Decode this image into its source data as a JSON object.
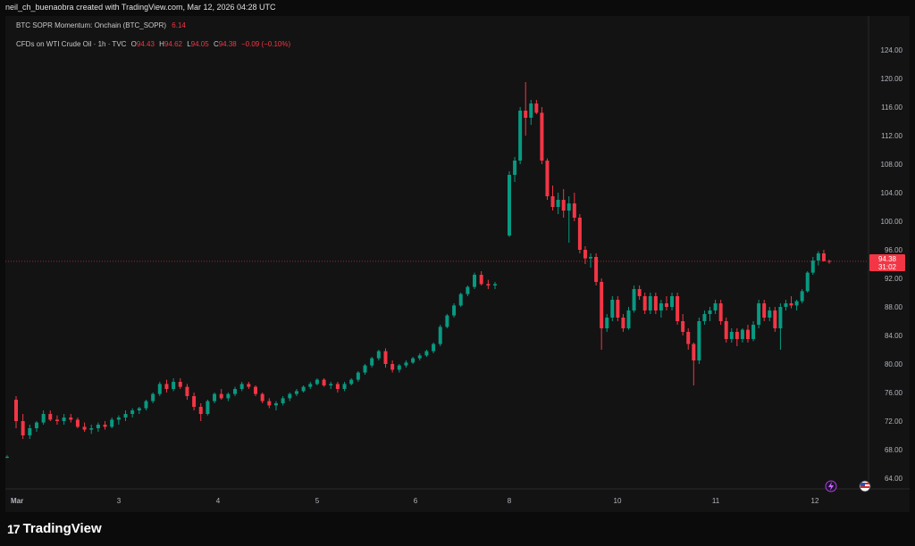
{
  "header": {
    "credit": "neil_ch_buenaobra created with TradingView.com, Mar 12, 2026 04:28 UTC"
  },
  "legend": {
    "indicator_name": "BTC SOPR Momentum: Onchain (BTC_SOPR)",
    "indicator_value": "6.14",
    "symbol": "CFDs on WTI Crude Oil · 1h · TVC",
    "o_label": "O",
    "o_val": "94.43",
    "h_label": "H",
    "h_val": "94.62",
    "l_label": "L",
    "l_val": "94.05",
    "c_label": "C",
    "c_val": "94.38",
    "change": "−0.09 (−0.10%)"
  },
  "price_tag": {
    "price": "94.38",
    "countdown": "31:02"
  },
  "footer": {
    "logo_text": "TradingView",
    "logo_mark": "17"
  },
  "colors": {
    "up": "#089981",
    "down": "#f23645",
    "bg": "#131313",
    "grid": "#1e1e1e",
    "text": "#b2b5be"
  },
  "icons": {
    "event1": "lightning-icon",
    "event2": "us-flag-icon"
  },
  "chart_data": {
    "type": "candlestick",
    "title": "CFDs on WTI Crude Oil · 1h · TVC",
    "y_ticks": [
      "124.00",
      "120.00",
      "116.00",
      "112.00",
      "108.00",
      "104.00",
      "100.00",
      "96.00",
      "92.00",
      "88.00",
      "84.00",
      "80.00",
      "76.00",
      "72.00",
      "68.00",
      "64.00"
    ],
    "ylim": [
      64,
      124
    ],
    "x_ticks": [
      "Mar",
      "3",
      "4",
      "5",
      "6",
      "8",
      "10",
      "11",
      "12"
    ],
    "last_price": 94.38,
    "last_price_color": "#f23645",
    "grid": false,
    "candles": [
      [
        67,
        67.2,
        66.8,
        67
      ],
      [
        75,
        75.5,
        71,
        72
      ],
      [
        72,
        73,
        69.5,
        70
      ],
      [
        70,
        71.5,
        69.5,
        71
      ],
      [
        71,
        72,
        70.5,
        71.8
      ],
      [
        71.8,
        73.5,
        71.5,
        73
      ],
      [
        73,
        73.5,
        72,
        72.2
      ],
      [
        72.2,
        72.8,
        71.5,
        72
      ],
      [
        72,
        73,
        71.5,
        72.5
      ],
      [
        72.5,
        73,
        71.8,
        72.2
      ],
      [
        72.2,
        72.5,
        71,
        71.2
      ],
      [
        71.2,
        71.8,
        70.5,
        70.8
      ],
      [
        70.8,
        71.5,
        70.2,
        71
      ],
      [
        71,
        71.8,
        70.5,
        71.5
      ],
      [
        71.5,
        72,
        70.8,
        71.2
      ],
      [
        71.2,
        72.5,
        71,
        72.2
      ],
      [
        72.2,
        72.8,
        71.5,
        72.5
      ],
      [
        72.5,
        73.5,
        72,
        73
      ],
      [
        73,
        73.8,
        72.5,
        73.5
      ],
      [
        73.5,
        74,
        73,
        73.8
      ],
      [
        73.8,
        75,
        73.5,
        74.8
      ],
      [
        74.8,
        76,
        74.5,
        75.8
      ],
      [
        75.8,
        77.5,
        75.5,
        77.2
      ],
      [
        77.2,
        77.8,
        76,
        76.5
      ],
      [
        76.5,
        78,
        76.2,
        77.5
      ],
      [
        77.5,
        78,
        76.5,
        76.8
      ],
      [
        76.8,
        77.2,
        75,
        75.5
      ],
      [
        75.5,
        76,
        73.5,
        74
      ],
      [
        74,
        74.5,
        72,
        73
      ],
      [
        73,
        75,
        72.8,
        74.8
      ],
      [
        74.8,
        76,
        74.5,
        75.8
      ],
      [
        75.8,
        76.5,
        75,
        75.2
      ],
      [
        75.2,
        76,
        74.8,
        75.8
      ],
      [
        75.8,
        76.8,
        75.5,
        76.5
      ],
      [
        76.5,
        77.5,
        76.2,
        77.2
      ],
      [
        77.2,
        77.5,
        76.5,
        76.8
      ],
      [
        76.8,
        77,
        75.5,
        75.8
      ],
      [
        75.8,
        76,
        74.5,
        74.8
      ],
      [
        74.8,
        75.2,
        73.8,
        74.2
      ],
      [
        74.2,
        74.8,
        73.5,
        74.5
      ],
      [
        74.5,
        75.5,
        74.2,
        75.2
      ],
      [
        75.2,
        76,
        74.8,
        75.8
      ],
      [
        75.8,
        76.5,
        75.5,
        76.2
      ],
      [
        76.2,
        77,
        76,
        76.8
      ],
      [
        76.8,
        77.5,
        76.5,
        77.2
      ],
      [
        77.2,
        78,
        77,
        77.8
      ],
      [
        77.8,
        78,
        76.8,
        77
      ],
      [
        77,
        77.5,
        76.5,
        77.2
      ],
      [
        77.2,
        77.5,
        76,
        76.5
      ],
      [
        76.5,
        77.5,
        76.2,
        77.2
      ],
      [
        77.2,
        78,
        77,
        77.8
      ],
      [
        77.8,
        79,
        77.5,
        78.8
      ],
      [
        78.8,
        80,
        78.5,
        79.8
      ],
      [
        79.8,
        81,
        79.5,
        80.8
      ],
      [
        80.8,
        82,
        80.5,
        81.8
      ],
      [
        81.8,
        82.2,
        79.5,
        80
      ],
      [
        80,
        80.5,
        78.8,
        79.2
      ],
      [
        79.2,
        80,
        78.8,
        79.8
      ],
      [
        79.8,
        80.5,
        79.5,
        80.2
      ],
      [
        80.2,
        81,
        80,
        80.8
      ],
      [
        80.8,
        81.5,
        80.5,
        81.2
      ],
      [
        81.2,
        82,
        81,
        81.8
      ],
      [
        81.8,
        83,
        81.5,
        82.8
      ],
      [
        82.8,
        85.5,
        82.5,
        85.2
      ],
      [
        85.2,
        87,
        85,
        86.8
      ],
      [
        86.8,
        88.5,
        86.5,
        88.2
      ],
      [
        88.2,
        90,
        88,
        89.8
      ],
      [
        89.8,
        91,
        89.5,
        90.8
      ],
      [
        90.8,
        92.8,
        90.5,
        92.5
      ],
      [
        92.5,
        93,
        91,
        91.2
      ],
      [
        91.2,
        91.8,
        90.5,
        91
      ],
      [
        91,
        91.5,
        90.5,
        91.2
      ],
      [
        98,
        107,
        97.8,
        106.5
      ],
      [
        106.5,
        109,
        105.5,
        108.5
      ],
      [
        108.5,
        116,
        108,
        115.5
      ],
      [
        115.5,
        119.5,
        112,
        114.5
      ],
      [
        114.5,
        117,
        113.5,
        116.5
      ],
      [
        116.5,
        117,
        115,
        115.2
      ],
      [
        115.2,
        116,
        108,
        108.5
      ],
      [
        108.5,
        108.8,
        103,
        103.5
      ],
      [
        103.5,
        105,
        101.5,
        102
      ],
      [
        102,
        104,
        101,
        103
      ],
      [
        103,
        104.5,
        100.5,
        101.5
      ],
      [
        101.5,
        103.5,
        97,
        102.5
      ],
      [
        102.5,
        104,
        100,
        100.5
      ],
      [
        100.5,
        101,
        95.5,
        96
      ],
      [
        96,
        96.5,
        94,
        94.8
      ],
      [
        94.8,
        95.5,
        93.5,
        95
      ],
      [
        95,
        95.5,
        91,
        91.5
      ],
      [
        91.5,
        92,
        82,
        85
      ],
      [
        85,
        87,
        84.5,
        86.5
      ],
      [
        86.5,
        89.5,
        86,
        89
      ],
      [
        89,
        89.5,
        86,
        86.5
      ],
      [
        86.5,
        87,
        84.5,
        85
      ],
      [
        85,
        88,
        84.8,
        87.5
      ],
      [
        87.5,
        91,
        87.2,
        90.5
      ],
      [
        90.5,
        91,
        89,
        89.5
      ],
      [
        89.5,
        90,
        87,
        87.5
      ],
      [
        87.5,
        90,
        87,
        89.5
      ],
      [
        89.5,
        90,
        87,
        87.5
      ],
      [
        87.5,
        89,
        86.5,
        88.5
      ],
      [
        88.5,
        89.5,
        87.5,
        88
      ],
      [
        88,
        90,
        87.5,
        89.5
      ],
      [
        89.5,
        90,
        85.5,
        86
      ],
      [
        86,
        87,
        84,
        84.5
      ],
      [
        84.5,
        85,
        82,
        82.8
      ],
      [
        82.8,
        83,
        77,
        80.5
      ],
      [
        80.5,
        86.5,
        80,
        86
      ],
      [
        86,
        87.5,
        85.5,
        87
      ],
      [
        87,
        88,
        86,
        87.5
      ],
      [
        87.5,
        89,
        87,
        88.5
      ],
      [
        88.5,
        89,
        85.5,
        86
      ],
      [
        86,
        86.5,
        83,
        83.5
      ],
      [
        83.5,
        85,
        83,
        84.5
      ],
      [
        84.5,
        85,
        82.5,
        83.5
      ],
      [
        83.5,
        85,
        83,
        84.8
      ],
      [
        84.8,
        85.5,
        83,
        83.5
      ],
      [
        83.5,
        86,
        83.2,
        85.5
      ],
      [
        85.5,
        89,
        85,
        88.5
      ],
      [
        88.5,
        89,
        86,
        86.5
      ],
      [
        86.5,
        88,
        86,
        87.5
      ],
      [
        87.5,
        88,
        84.5,
        85
      ],
      [
        85,
        88.5,
        82,
        88
      ],
      [
        88,
        89,
        87.5,
        88.5
      ],
      [
        88.5,
        89.5,
        87.8,
        88.2
      ],
      [
        88.2,
        89,
        87.5,
        88.8
      ],
      [
        88.8,
        90.5,
        88.5,
        90.2
      ],
      [
        90.2,
        93,
        90,
        92.8
      ],
      [
        92.8,
        95,
        92.5,
        94.5
      ],
      [
        94.5,
        95.8,
        93.8,
        95.5
      ],
      [
        95.5,
        96,
        94.5,
        94.4
      ],
      [
        94.43,
        94.62,
        94.05,
        94.38
      ]
    ]
  }
}
